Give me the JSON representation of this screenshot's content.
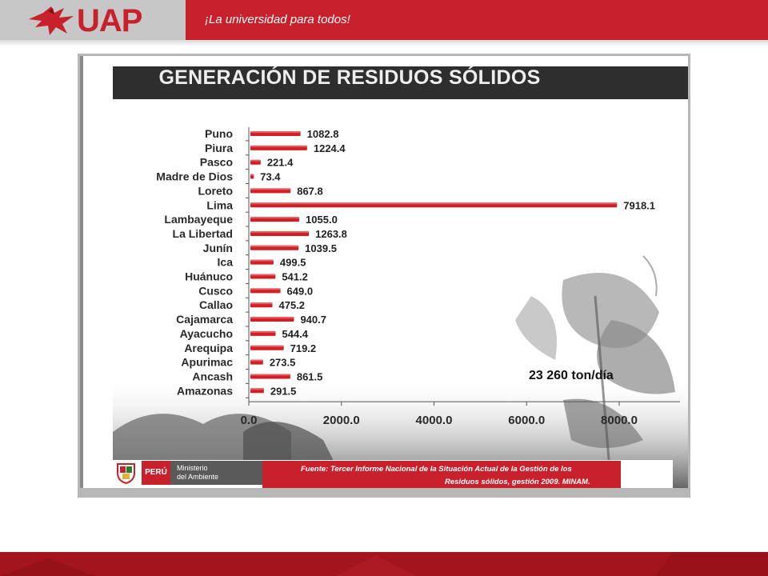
{
  "header": {
    "logo_text": "UAP",
    "slogan": "¡La universidad para todos!"
  },
  "slide": {
    "title": "GENERACIÓN DE RESIDUOS SÓLIDOS",
    "annotation": "23 260 ton/día",
    "footer": {
      "country": "PERÚ",
      "ministry_line1": "Ministerio",
      "ministry_line2": "del Ambiente",
      "source_line1": "Fuente: Tercer Informe Nacional de la Situación Actual de la Gestión de los",
      "source_line2": "Residuos sólidos, gestión 2009. MINAM."
    }
  },
  "colors": {
    "brand_red": "#c8212c",
    "bar_red": "#d21f26",
    "title_bar": "#2e2e2e"
  },
  "chart_data": {
    "type": "bar",
    "orientation": "horizontal",
    "title": "GENERACIÓN DE RESIDUOS SÓLIDOS",
    "categories": [
      "Puno",
      "Piura",
      "Pasco",
      "Madre de Dios",
      "Loreto",
      "Lima",
      "Lambayeque",
      "La Libertad",
      "Junín",
      "Ica",
      "Huánuco",
      "Cusco",
      "Callao",
      "Cajamarca",
      "Ayacucho",
      "Arequipa",
      "Apurimac",
      "Ancash",
      "Amazonas"
    ],
    "values": [
      1082.8,
      1224.4,
      221.4,
      73.4,
      867.8,
      7918.1,
      1055.0,
      1263.8,
      1039.5,
      499.5,
      541.2,
      649.0,
      475.2,
      940.7,
      544.4,
      719.2,
      273.5,
      861.5,
      291.5
    ],
    "value_labels": [
      "1082.8",
      "1224.4",
      "221.4",
      "73.4",
      "867.8",
      "7918.1",
      "1055.0",
      "1263.8",
      "1039.5",
      "499.5",
      "541.2",
      "649.0",
      "475.2",
      "940.7",
      "544.4",
      "719.2",
      "273.5",
      "861.5",
      "291.5"
    ],
    "xlim": [
      0,
      9000
    ],
    "xticks": [
      0,
      2000,
      4000,
      6000,
      8000
    ],
    "xtick_labels": [
      "0.0",
      "2000.0",
      "4000.0",
      "6000.0",
      "8000.0"
    ],
    "xlabel": "",
    "ylabel": "",
    "grid": false,
    "annotation": "23 260 ton/día"
  }
}
